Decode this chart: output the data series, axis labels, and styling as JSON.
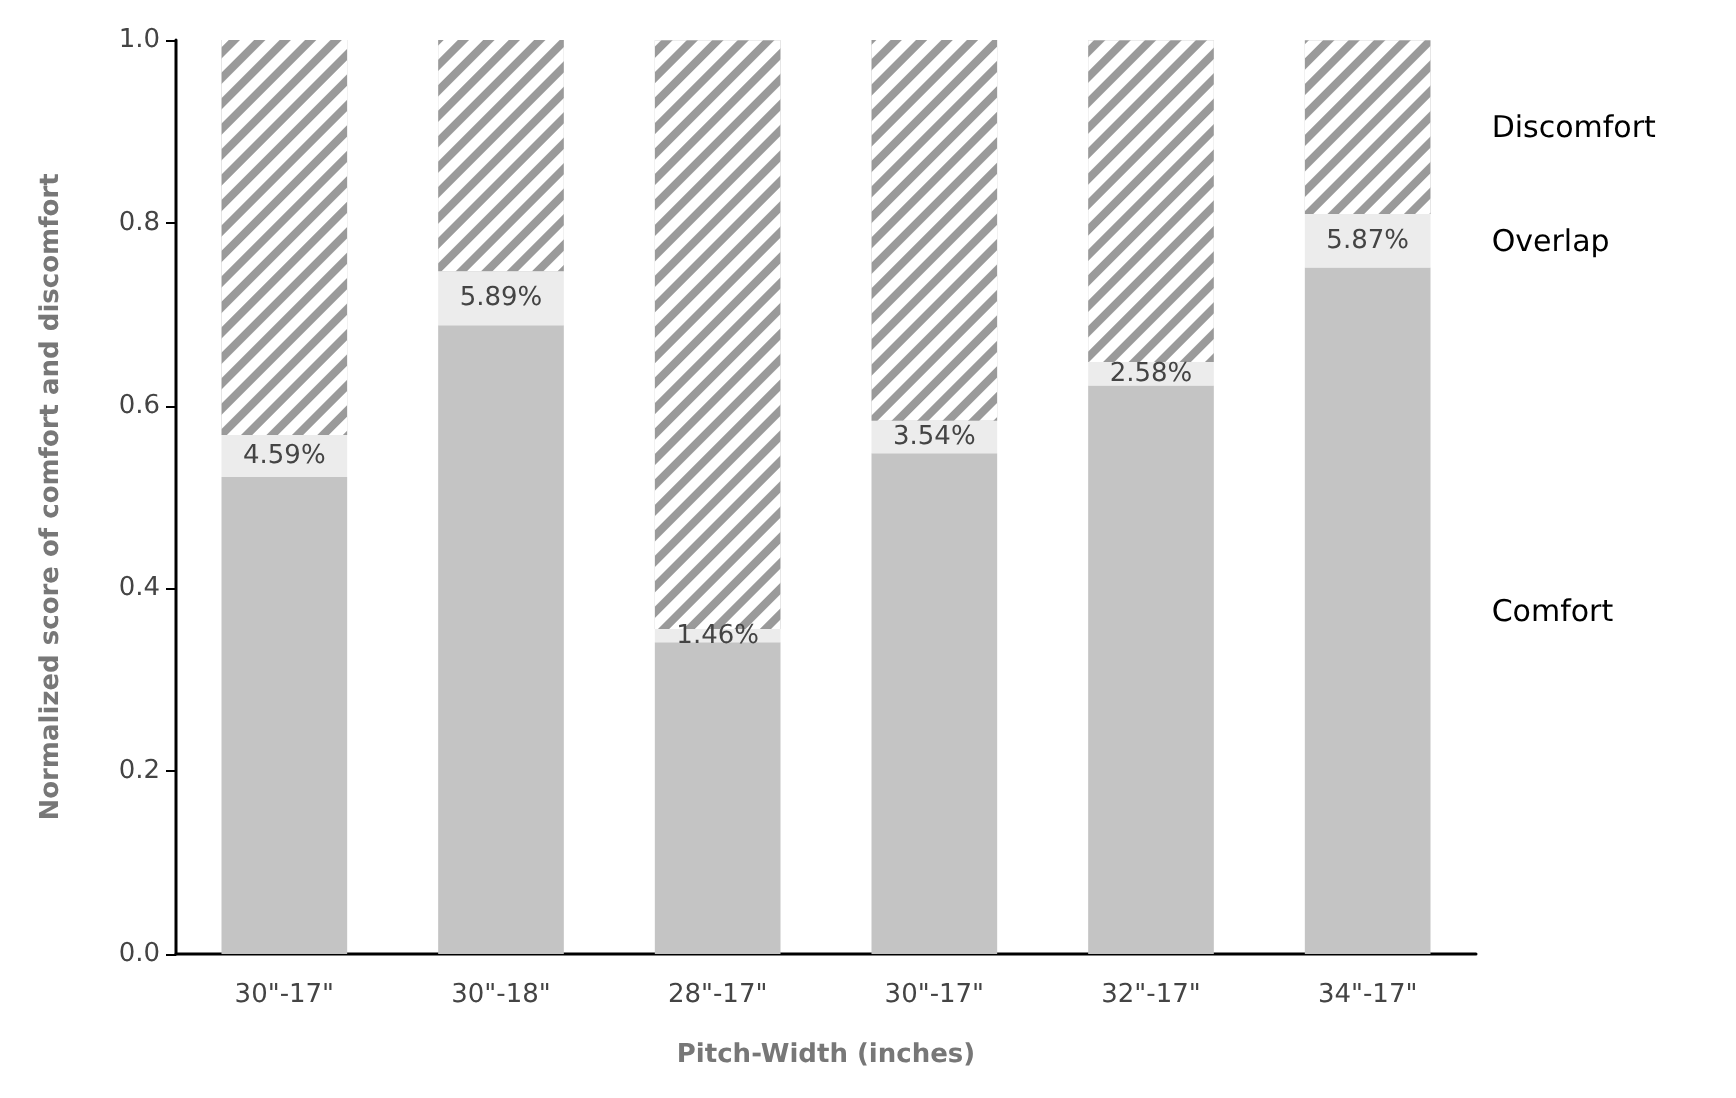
{
  "chart_data": {
    "type": "bar",
    "stacked": true,
    "xlabel": "Pitch-Width (inches)",
    "ylabel": "Normalized score of comfort and discomfort",
    "categories": [
      "30\"-17\"",
      "30\"-18\"",
      "28\"-17\"",
      "30\"-17\"",
      "32\"-17\"",
      "34\"-17\""
    ],
    "series": [
      {
        "name": "Comfort",
        "color": "#c4c4c4",
        "values": [
          0.522,
          0.688,
          0.341,
          0.548,
          0.622,
          0.751
        ]
      },
      {
        "name": "Overlap",
        "color": "#ececec",
        "values": [
          0.0459,
          0.0589,
          0.0146,
          0.0354,
          0.0258,
          0.0587
        ],
        "value_labels": [
          "4.59%",
          "5.89%",
          "1.46%",
          "3.54%",
          "2.58%",
          "5.87%"
        ]
      },
      {
        "name": "Discomfort",
        "color": "#9a9a9a",
        "values": [
          0.432,
          0.253,
          0.644,
          0.417,
          0.352,
          0.19
        ]
      }
    ],
    "ylim": [
      0,
      1
    ],
    "yticks": [
      {
        "value": 0,
        "label": "0.0"
      },
      {
        "value": 0.2,
        "label": "0.2"
      },
      {
        "value": 0.4,
        "label": "0.4"
      },
      {
        "value": 0.6,
        "label": "0.6"
      },
      {
        "value": 0.8,
        "label": "0.8"
      },
      {
        "value": 1,
        "label": "1.0"
      }
    ],
    "grid": false,
    "legend": false
  }
}
